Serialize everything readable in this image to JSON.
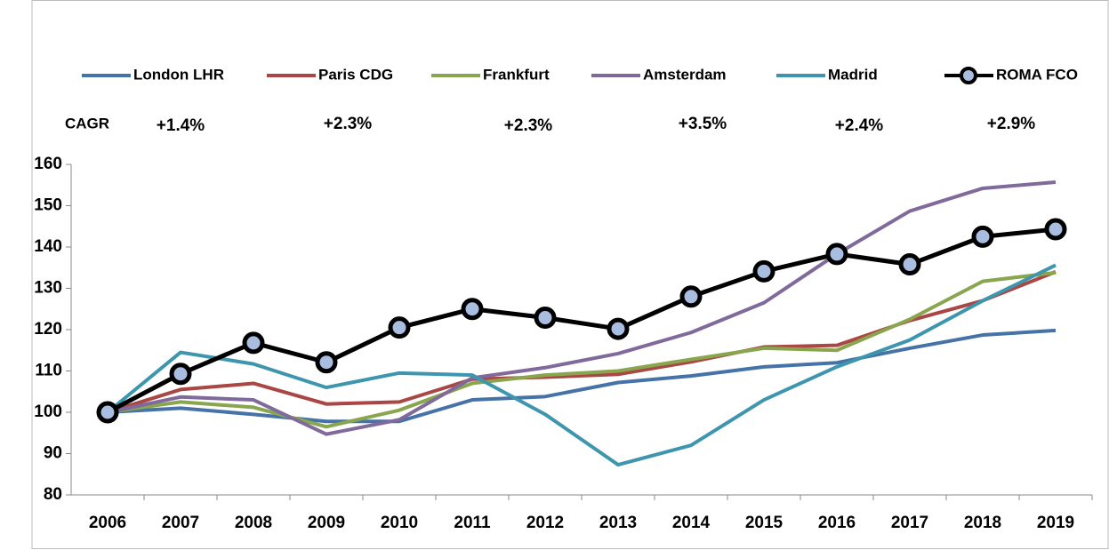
{
  "chart_data": {
    "type": "line",
    "categories": [
      "2006",
      "2007",
      "2008",
      "2009",
      "2010",
      "2011",
      "2012",
      "2013",
      "2014",
      "2015",
      "2016",
      "2017",
      "2018",
      "2019"
    ],
    "series": [
      {
        "name": "London LHR",
        "color": "#4572a7",
        "values": [
          100,
          101,
          99.5,
          97.8,
          97.8,
          103,
          103.8,
          107.2,
          108.8,
          111,
          112,
          115.5,
          118.7,
          119.8
        ]
      },
      {
        "name": "Paris CDG",
        "color": "#aa4643",
        "values": [
          100,
          105.5,
          107,
          102,
          102.5,
          108,
          108.5,
          109.2,
          112.2,
          115.8,
          116.2,
          122.2,
          127,
          134
        ]
      },
      {
        "name": "Frankfurt",
        "color": "#89a54e",
        "values": [
          100,
          102.5,
          101.2,
          96.5,
          100.5,
          107,
          109,
          110,
          112.8,
          115.5,
          115,
          122.5,
          131.7,
          133.8
        ]
      },
      {
        "name": "Amsterdam",
        "color": "#80699b",
        "values": [
          100,
          103.7,
          103,
          94.7,
          98.2,
          108.3,
          110.8,
          114.2,
          119.3,
          126.5,
          138.3,
          148.7,
          154.2,
          155.7
        ]
      },
      {
        "name": "Madrid",
        "color": "#3d96ae",
        "values": [
          100,
          114.5,
          111.7,
          106,
          109.5,
          109,
          99.5,
          87.3,
          92,
          103,
          111,
          117.5,
          127,
          135.6
        ]
      },
      {
        "name": "ROMA FCO",
        "color": "#000000",
        "marker_fill": "#a9bde0",
        "values": [
          100,
          109.3,
          116.8,
          112.1,
          120.5,
          125,
          122.9,
          120.2,
          128,
          134.1,
          138.3,
          135.8,
          142.5,
          144.3
        ]
      }
    ],
    "annotations": {
      "label": "CAGR",
      "values": [
        "+1.4%",
        "+2.3%",
        "+2.3%",
        "+3.5%",
        "+2.4%",
        "+2.9%"
      ]
    },
    "ylim": [
      80,
      160
    ],
    "yticks": [
      80,
      90,
      100,
      110,
      120,
      130,
      140,
      150,
      160
    ],
    "grid": false
  }
}
